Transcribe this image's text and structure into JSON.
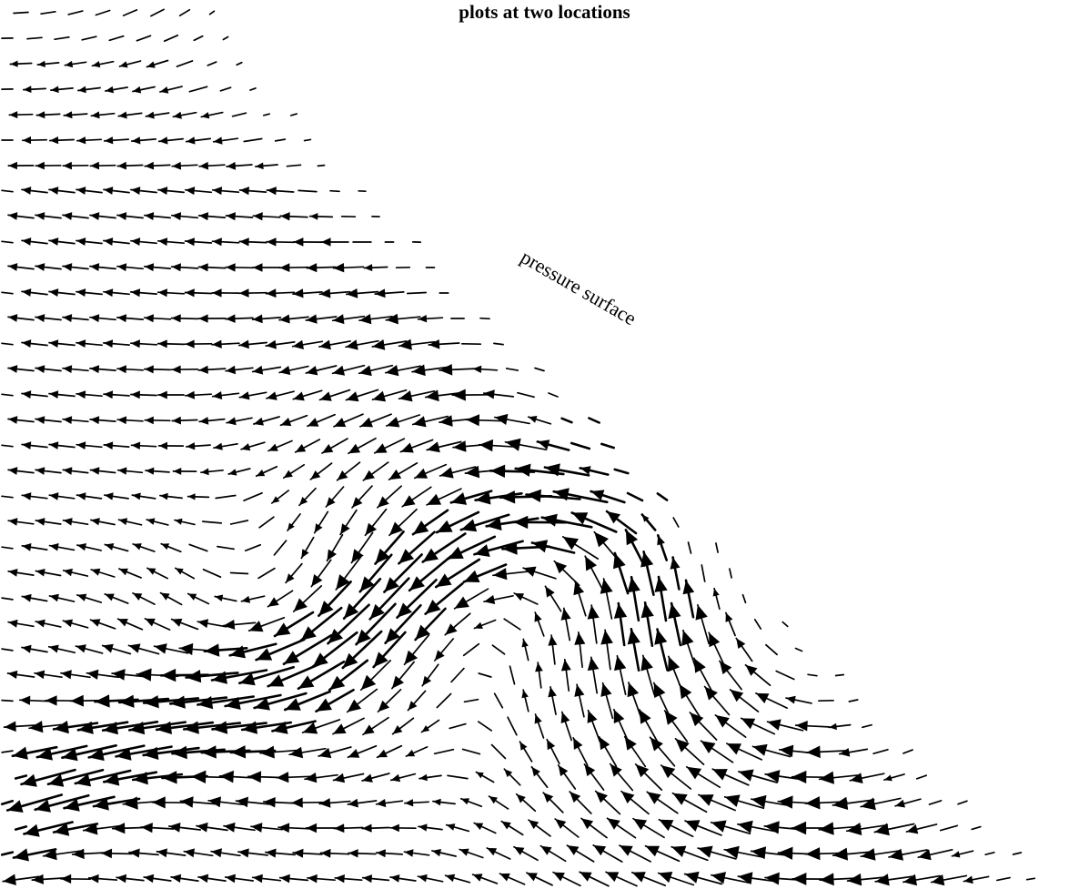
{
  "figure": {
    "caption": "plots at two locations",
    "surface_label": "pressure surface",
    "stroke_color": "#000000",
    "background": "#ffffff"
  }
}
